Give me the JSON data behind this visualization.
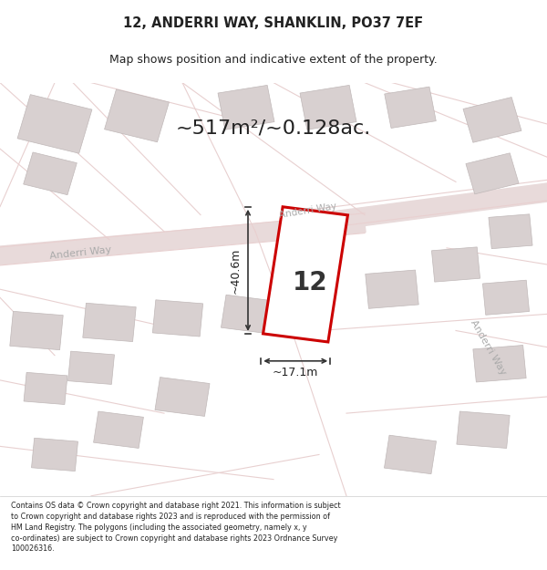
{
  "title": "12, ANDERRI WAY, SHANKLIN, PO37 7EF",
  "subtitle": "Map shows position and indicative extent of the property.",
  "area_text": "~517m²/~0.128ac.",
  "width_label": "~17.1m",
  "height_label": "~40.6m",
  "house_number": "12",
  "footer": "Contains OS data © Crown copyright and database right 2021. This information is subject to Crown copyright and database rights 2023 and is reproduced with the permission of HM Land Registry. The polygons (including the associated geometry, namely x, y co-ordinates) are subject to Crown copyright and database rights 2023 Ordnance Survey 100026316.",
  "bg_color": "#f5f5f5",
  "map_bg": "#f0eeee",
  "road_color": "#e8d0d0",
  "road_fill": "#ddd0d0",
  "building_color": "#d0c8c8",
  "building_fill": "#d8d0d0",
  "highlight_color": "#cc0000",
  "dim_line_color": "#333333",
  "road_label_color": "#888888",
  "title_color": "#222222",
  "footer_color": "#222222"
}
